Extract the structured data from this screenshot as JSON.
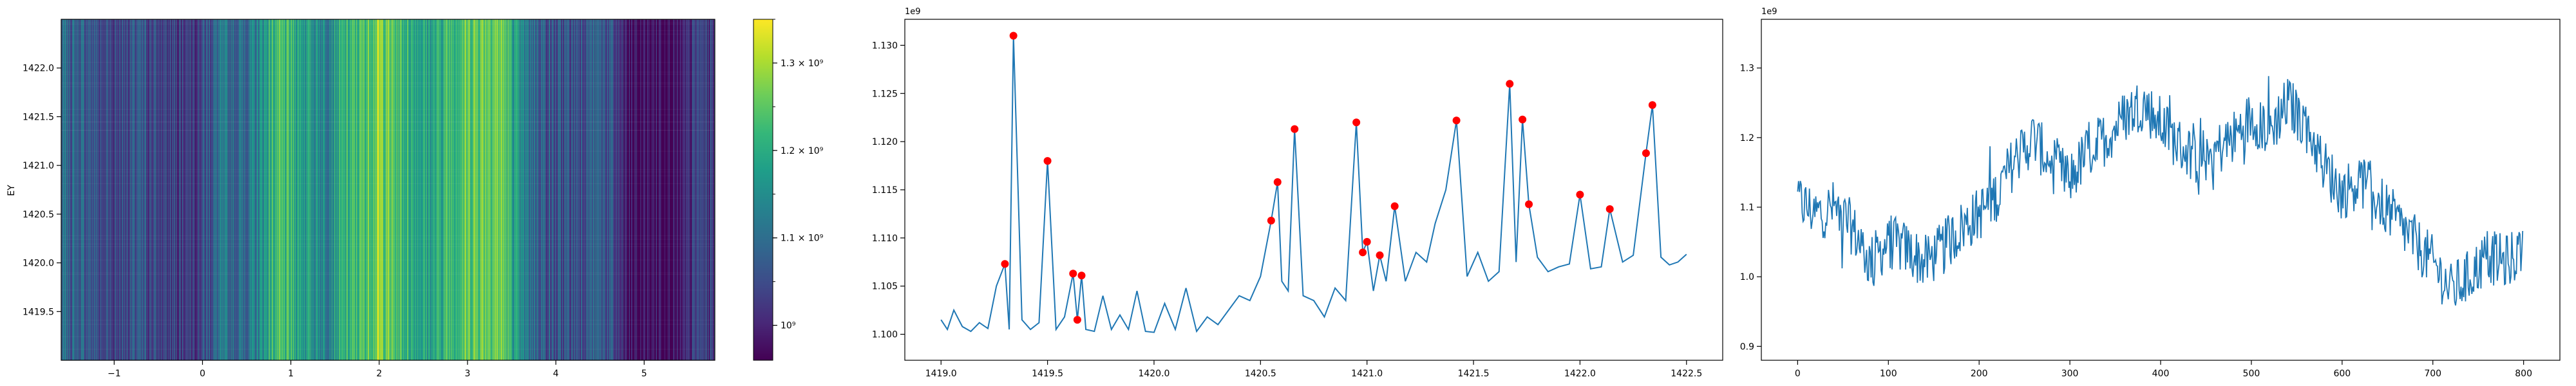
{
  "chart_data": [
    {
      "type": "heatmap",
      "ylabel": "EY",
      "xlim": [
        -1.6,
        5.8
      ],
      "ylim": [
        1419.0,
        1422.5
      ],
      "xticks": [
        -1,
        0,
        1,
        2,
        3,
        4,
        5
      ],
      "xtick_labels": [
        "−1",
        "0",
        "1",
        "2",
        "3",
        "4",
        "5"
      ],
      "yticks": [
        1419.5,
        1420.0,
        1420.5,
        1421.0,
        1421.5,
        1422.0
      ],
      "ytick_labels": [
        "1419.5",
        "1420.0",
        "1420.5",
        "1421.0",
        "1421.5",
        "1422.0"
      ],
      "colormap": "viridis",
      "color_range": [
        960000000,
        1350000000
      ],
      "colorbar_ticks": [
        1000000000,
        1100000000,
        1200000000,
        1300000000
      ],
      "colorbar_tick_labels": [
        "10⁹",
        "1.1 × 10⁹",
        "1.2 × 10⁹",
        "1.3 × 10⁹"
      ],
      "column_profile_x": [
        -1.6,
        -1.4,
        -1.2,
        -1.0,
        -0.8,
        -0.6,
        -0.4,
        -0.2,
        0.0,
        0.2,
        0.4,
        0.6,
        0.8,
        1.0,
        1.2,
        1.4,
        1.6,
        1.8,
        2.0,
        2.2,
        2.4,
        2.6,
        2.8,
        3.0,
        3.2,
        3.4,
        3.6,
        3.8,
        4.0,
        4.2,
        4.4,
        4.6,
        4.8,
        5.0,
        5.2,
        5.4,
        5.6,
        5.8
      ],
      "column_profile_values": [
        1090000000,
        1080000000,
        1060000000,
        1040000000,
        1060000000,
        1050000000,
        1030000000,
        1040000000,
        1050000000,
        1100000000,
        1090000000,
        1120000000,
        1220000000,
        1210000000,
        1170000000,
        1140000000,
        1200000000,
        1230000000,
        1280000000,
        1230000000,
        1200000000,
        1180000000,
        1230000000,
        1250000000,
        1270000000,
        1260000000,
        1130000000,
        1090000000,
        1050000000,
        1060000000,
        1080000000,
        1060000000,
        980000000,
        970000000,
        990000000,
        960000000,
        1040000000,
        1030000000
      ]
    },
    {
      "type": "line",
      "offset_label": "1e9",
      "xlim": [
        1418.83,
        1422.67
      ],
      "ylim": [
        1.0973,
        1.1327
      ],
      "xticks": [
        1419.0,
        1419.5,
        1420.0,
        1420.5,
        1421.0,
        1421.5,
        1422.0,
        1422.5
      ],
      "xtick_labels": [
        "1419.0",
        "1419.5",
        "1420.0",
        "1420.5",
        "1421.0",
        "1421.5",
        "1422.0",
        "1422.5"
      ],
      "yticks": [
        1.1,
        1.105,
        1.11,
        1.115,
        1.12,
        1.125,
        1.13
      ],
      "ytick_labels": [
        "1.100",
        "1.105",
        "1.110",
        "1.115",
        "1.120",
        "1.125",
        "1.130"
      ],
      "line_color": "#1f77b4",
      "peak_color": "#ff0000",
      "x": [
        1419.0,
        1419.03,
        1419.06,
        1419.1,
        1419.14,
        1419.18,
        1419.22,
        1419.26,
        1419.3,
        1419.32,
        1419.34,
        1419.38,
        1419.42,
        1419.46,
        1419.5,
        1419.54,
        1419.58,
        1419.62,
        1419.64,
        1419.66,
        1419.68,
        1419.72,
        1419.76,
        1419.8,
        1419.84,
        1419.88,
        1419.92,
        1419.96,
        1420.0,
        1420.05,
        1420.1,
        1420.15,
        1420.2,
        1420.25,
        1420.3,
        1420.35,
        1420.4,
        1420.45,
        1420.5,
        1420.55,
        1420.58,
        1420.6,
        1420.63,
        1420.66,
        1420.7,
        1420.75,
        1420.8,
        1420.85,
        1420.9,
        1420.95,
        1420.98,
        1421.0,
        1421.03,
        1421.06,
        1421.09,
        1421.13,
        1421.18,
        1421.23,
        1421.28,
        1421.32,
        1421.37,
        1421.42,
        1421.47,
        1421.52,
        1421.57,
        1421.62,
        1421.67,
        1421.7,
        1421.73,
        1421.76,
        1421.8,
        1421.85,
        1421.9,
        1421.95,
        1422.0,
        1422.05,
        1422.1,
        1422.14,
        1422.2,
        1422.25,
        1422.31,
        1422.34,
        1422.38,
        1422.42,
        1422.46,
        1422.5
      ],
      "y": [
        1.1015,
        1.1005,
        1.1025,
        1.1008,
        1.1003,
        1.1012,
        1.1006,
        1.105,
        1.1073,
        1.1005,
        1.131,
        1.1015,
        1.1005,
        1.1012,
        1.118,
        1.1005,
        1.1018,
        1.1063,
        1.1015,
        1.1061,
        1.1005,
        1.1003,
        1.104,
        1.1005,
        1.102,
        1.1005,
        1.1045,
        1.1003,
        1.1002,
        1.1032,
        1.1005,
        1.1048,
        1.1003,
        1.1018,
        1.101,
        1.1025,
        1.104,
        1.1035,
        1.106,
        1.1118,
        1.1158,
        1.1055,
        1.1045,
        1.1213,
        1.104,
        1.1035,
        1.1018,
        1.1048,
        1.1035,
        1.122,
        1.1085,
        1.1096,
        1.1045,
        1.1082,
        1.1055,
        1.1133,
        1.1055,
        1.1085,
        1.1075,
        1.1115,
        1.115,
        1.1222,
        1.106,
        1.1085,
        1.1055,
        1.1065,
        1.126,
        1.1075,
        1.1223,
        1.1135,
        1.108,
        1.1065,
        1.107,
        1.1073,
        1.1145,
        1.1068,
        1.107,
        1.113,
        1.1075,
        1.1082,
        1.1188,
        1.1238,
        1.108,
        1.1072,
        1.1075,
        1.1083
      ],
      "peaks": {
        "x": [
          1419.3,
          1419.34,
          1419.5,
          1419.62,
          1419.64,
          1419.66,
          1420.55,
          1420.58,
          1420.66,
          1420.95,
          1420.98,
          1421.0,
          1421.06,
          1421.13,
          1421.42,
          1421.67,
          1421.73,
          1421.76,
          1422.0,
          1422.14,
          1422.31,
          1422.34
        ],
        "y": [
          1.1073,
          1.131,
          1.118,
          1.1063,
          1.1015,
          1.1061,
          1.1118,
          1.1158,
          1.1213,
          1.122,
          1.1085,
          1.1096,
          1.1082,
          1.1133,
          1.1222,
          1.126,
          1.1223,
          1.1135,
          1.1145,
          1.113,
          1.1188,
          1.1238
        ]
      }
    },
    {
      "type": "line",
      "offset_label": "1e9",
      "xlim": [
        -40,
        840
      ],
      "ylim": [
        0.88,
        1.37
      ],
      "xticks": [
        0,
        100,
        200,
        300,
        400,
        500,
        600,
        700,
        800
      ],
      "xtick_labels": [
        "0",
        "100",
        "200",
        "300",
        "400",
        "500",
        "600",
        "700",
        "800"
      ],
      "yticks": [
        0.9,
        1.0,
        1.1,
        1.2,
        1.3
      ],
      "ytick_labels": [
        "0.9",
        "1.0",
        "1.1",
        "1.2",
        "1.3"
      ],
      "line_color": "#1f77b4",
      "trend_x": [
        0,
        20,
        40,
        60,
        80,
        100,
        120,
        140,
        160,
        180,
        200,
        220,
        240,
        260,
        280,
        300,
        320,
        340,
        360,
        380,
        400,
        420,
        440,
        460,
        480,
        500,
        520,
        540,
        560,
        580,
        600,
        620,
        640,
        660,
        680,
        700,
        720,
        740,
        760,
        780,
        800
      ],
      "trend_y": [
        1.11,
        1.09,
        1.1,
        1.07,
        1.02,
        1.05,
        1.04,
        1.02,
        1.04,
        1.07,
        1.09,
        1.12,
        1.17,
        1.2,
        1.16,
        1.14,
        1.18,
        1.2,
        1.23,
        1.25,
        1.22,
        1.19,
        1.17,
        1.18,
        1.2,
        1.23,
        1.21,
        1.25,
        1.22,
        1.16,
        1.12,
        1.14,
        1.11,
        1.08,
        1.05,
        1.02,
        0.98,
        1.0,
        1.03,
        1.02,
        1.04
      ],
      "noise_amplitude": 0.04,
      "n_points": 800
    }
  ]
}
